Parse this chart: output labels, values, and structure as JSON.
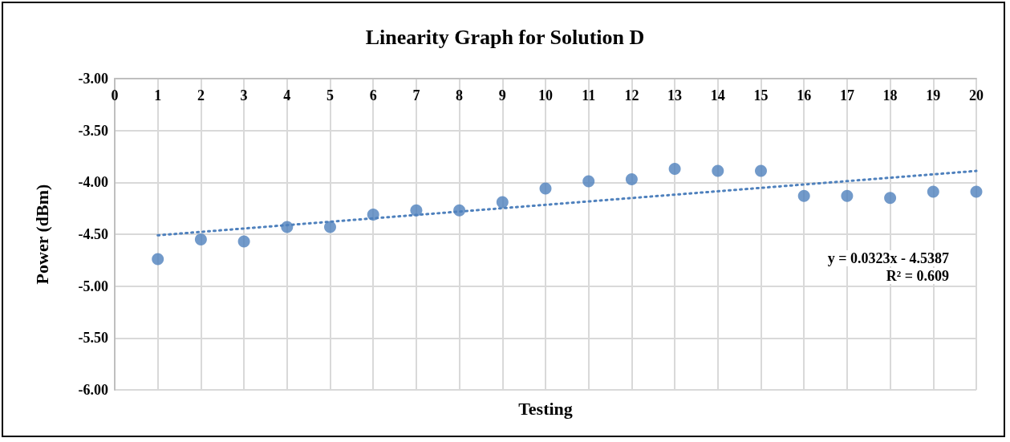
{
  "chart_data": {
    "type": "scatter",
    "title": "Linearity Graph for Solution D",
    "xlabel": "Testing",
    "ylabel": "Power (dBm)",
    "xlim": [
      0,
      20
    ],
    "xticks": [
      0,
      1,
      2,
      3,
      4,
      5,
      6,
      7,
      8,
      9,
      10,
      11,
      12,
      13,
      14,
      15,
      16,
      17,
      18,
      19,
      20
    ],
    "ylim": [
      -6,
      -3
    ],
    "yticks": [
      {
        "value": -6,
        "label": "-6.00"
      },
      {
        "value": -5.5,
        "label": "-5.50"
      },
      {
        "value": -5,
        "label": "-5.00"
      },
      {
        "value": -4.5,
        "label": "-4.50"
      },
      {
        "value": -4,
        "label": "-4.00"
      },
      {
        "value": -3.5,
        "label": "-3.50"
      },
      {
        "value": -3,
        "label": "-3.00"
      }
    ],
    "grid": true,
    "x": [
      1,
      2,
      3,
      4,
      5,
      6,
      7,
      8,
      9,
      10,
      11,
      12,
      13,
      14,
      15,
      16,
      17,
      18,
      19,
      20
    ],
    "series": [
      {
        "color": "#4f81bd",
        "marker": "circle",
        "values": [
          -4.74,
          -4.55,
          -4.57,
          -4.43,
          -4.43,
          -4.31,
          -4.27,
          -4.27,
          -4.19,
          -4.06,
          -3.99,
          -3.97,
          -3.87,
          -3.89,
          -3.89,
          -4.13,
          -4.13,
          -4.15,
          -4.09,
          -4.09
        ]
      },
      {
        "type": "line",
        "color": "#4f81bd",
        "marker": "none",
        "line_style": "dotted",
        "x": [
          1,
          20
        ],
        "values": [
          -4.51,
          -3.89
        ]
      }
    ],
    "annotations": [
      "y = 0.0323x - 4.5387",
      "R² = 0.609"
    ]
  }
}
